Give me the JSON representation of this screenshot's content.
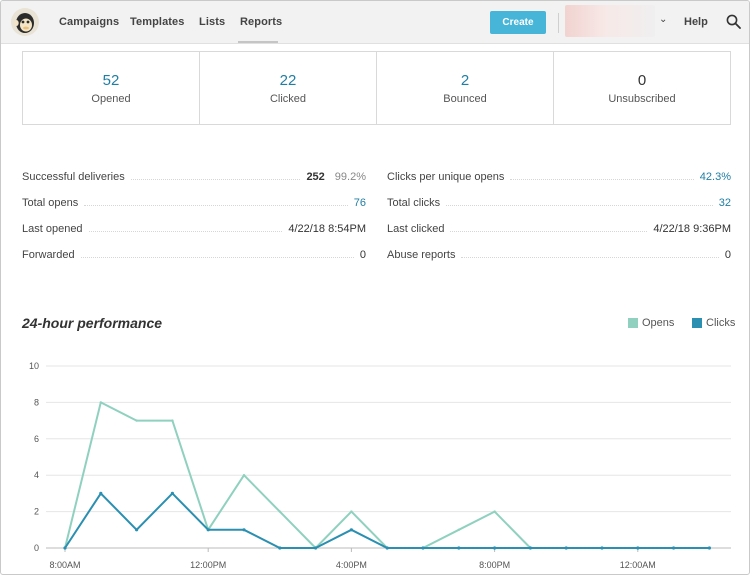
{
  "nav": {
    "items": [
      {
        "label": "Campaigns"
      },
      {
        "label": "Templates"
      },
      {
        "label": "Lists"
      },
      {
        "label": "Reports"
      }
    ],
    "active": "Reports",
    "create_label": "Create",
    "help_label": "Help",
    "account_caret": "⌄"
  },
  "stats": [
    {
      "value": "52",
      "label": "Opened"
    },
    {
      "value": "22",
      "label": "Clicked"
    },
    {
      "value": "2",
      "label": "Bounced"
    },
    {
      "value": "0",
      "label": "Unsubscribed"
    }
  ],
  "details_left": [
    {
      "label": "Successful deliveries",
      "value": "252",
      "extra": "99.2%"
    },
    {
      "label": "Total opens",
      "value": "76"
    },
    {
      "label": "Last opened",
      "value": "4/22/18 8:54PM"
    },
    {
      "label": "Forwarded",
      "value": "0"
    }
  ],
  "details_right": [
    {
      "label": "Clicks per unique opens",
      "value": "42.3%"
    },
    {
      "label": "Total clicks",
      "value": "32"
    },
    {
      "label": "Last clicked",
      "value": "4/22/18 9:36PM"
    },
    {
      "label": "Abuse reports",
      "value": "0"
    }
  ],
  "colors": {
    "accent": "#47b5d8",
    "link": "#1f7ea3",
    "opens": "#8fd1be",
    "clicks": "#2a8fb0"
  },
  "chart_data": {
    "type": "line",
    "title": "24-hour performance",
    "ylim": [
      0,
      10
    ],
    "y_ticks": [
      "0",
      "2",
      "4",
      "6",
      "8",
      "10"
    ],
    "x_tick_labels": [
      "8:00AM",
      "12:00PM",
      "4:00PM",
      "8:00PM",
      "12:00AM"
    ],
    "hours": [
      "8:00AM",
      "9:00AM",
      "10:00AM",
      "11:00AM",
      "12:00PM",
      "1:00PM",
      "2:00PM",
      "3:00PM",
      "4:00PM",
      "5:00PM",
      "6:00PM",
      "7:00PM",
      "8:00PM",
      "9:00PM",
      "10:00PM",
      "11:00PM",
      "12:00AM",
      "1:00AM",
      "2:00AM"
    ],
    "legend_position": "top-right",
    "grid": true,
    "series": [
      {
        "name": "Opens",
        "values": [
          0,
          8,
          7,
          7,
          1,
          4,
          2,
          0,
          2,
          0,
          0,
          1,
          2,
          0,
          0,
          0,
          0,
          0,
          0
        ]
      },
      {
        "name": "Clicks",
        "values": [
          0,
          3,
          1,
          3,
          1,
          1,
          0,
          0,
          1,
          0,
          0,
          0,
          0,
          0,
          0,
          0,
          0,
          0,
          0
        ]
      }
    ]
  }
}
